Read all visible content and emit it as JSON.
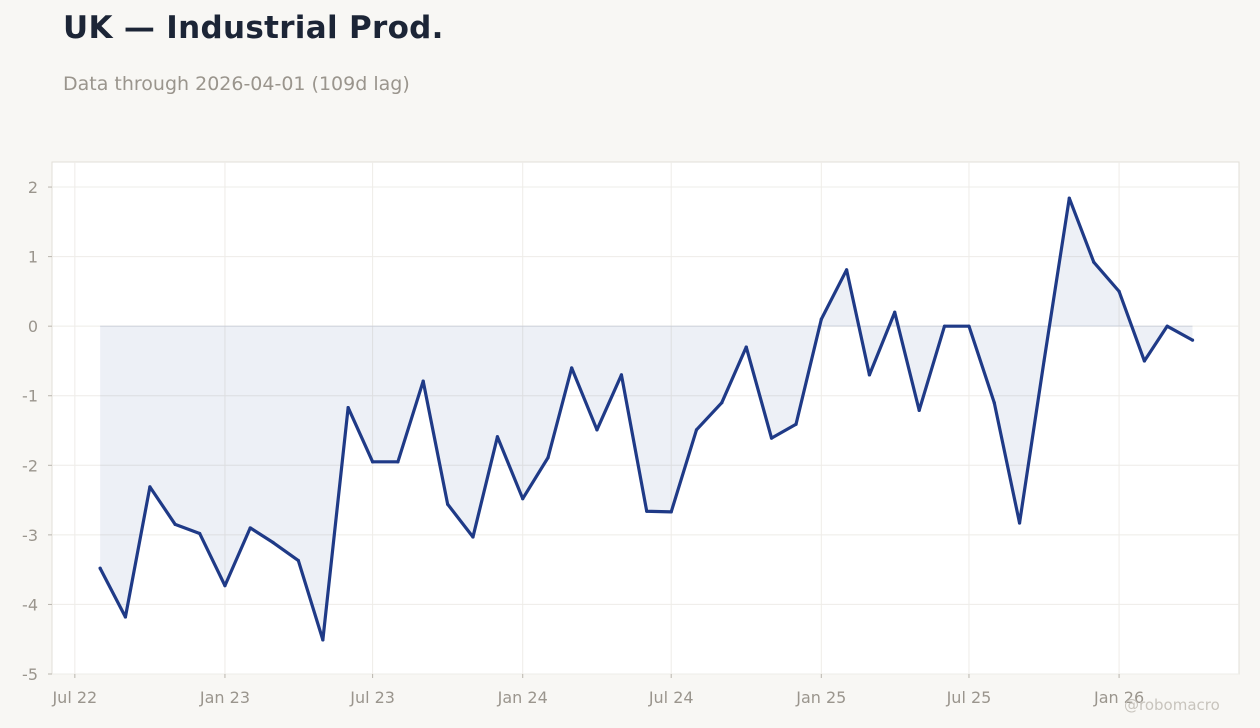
{
  "header": {
    "title": "UK — Industrial Prod.",
    "subtitle": "Data through 2026-04-01 (109d lag)"
  },
  "watermark": "@robomacro",
  "colors": {
    "line": "#1f3a87",
    "fill": "#1f3a87",
    "page_background": "#f8f7f4",
    "plot_background": "#ffffff",
    "tick_text": "#9a958d",
    "title_text": "#1c2536"
  },
  "chart_data": {
    "type": "area",
    "title": "UK — Industrial Prod.",
    "subtitle": "Data through 2026-04-01 (109d lag)",
    "xlabel": "",
    "ylabel": "",
    "x": [
      "2022-08-01",
      "2022-09-01",
      "2022-10-01",
      "2022-11-01",
      "2022-12-01",
      "2023-01-01",
      "2023-02-01",
      "2023-03-01",
      "2023-04-01",
      "2023-05-01",
      "2023-06-01",
      "2023-07-01",
      "2023-08-01",
      "2023-09-01",
      "2023-10-01",
      "2023-11-01",
      "2023-12-01",
      "2024-01-01",
      "2024-02-01",
      "2024-03-01",
      "2024-04-01",
      "2024-05-01",
      "2024-06-01",
      "2024-07-01",
      "2024-08-01",
      "2024-09-01",
      "2024-10-01",
      "2024-11-01",
      "2024-12-01",
      "2025-01-01",
      "2025-02-01",
      "2025-03-01",
      "2025-04-01",
      "2025-05-01",
      "2025-06-01",
      "2025-07-01",
      "2025-08-01",
      "2025-09-01",
      "2025-10-01",
      "2025-11-01",
      "2025-12-01",
      "2026-01-01",
      "2026-02-01",
      "2026-03-01",
      "2026-04-01"
    ],
    "series": [
      {
        "values": [
          -3.48,
          -4.18,
          -2.31,
          -2.85,
          -2.98,
          -3.73,
          -2.9,
          -3.11,
          -3.37,
          -4.51,
          -1.17,
          -1.95,
          -1.95,
          -0.79,
          -2.56,
          -3.03,
          -1.59,
          -2.48,
          -1.89,
          -0.6,
          -1.49,
          -0.7,
          -2.66,
          -2.67,
          -1.49,
          -1.1,
          -0.3,
          -1.61,
          -1.41,
          0.1,
          0.81,
          -0.7,
          0.2,
          -1.21,
          0.0,
          0.0,
          -1.1,
          -2.83,
          -0.5,
          1.84,
          0.92,
          0.5,
          -0.5,
          0.0,
          -0.2
        ]
      }
    ],
    "baseline": 0,
    "xticks": [
      {
        "date": "2022-07-01",
        "label": "Jul 22"
      },
      {
        "date": "2023-01-01",
        "label": "Jan 23"
      },
      {
        "date": "2023-07-01",
        "label": "Jul 23"
      },
      {
        "date": "2024-01-01",
        "label": "Jan 24"
      },
      {
        "date": "2024-07-01",
        "label": "Jul 24"
      },
      {
        "date": "2025-01-01",
        "label": "Jan 25"
      },
      {
        "date": "2025-07-01",
        "label": "Jul 25"
      },
      {
        "date": "2026-01-01",
        "label": "Jan 26"
      }
    ],
    "yticks": [
      2,
      1,
      0,
      -1,
      -2,
      -3,
      -4,
      -5
    ],
    "xlim": [
      "2022-06-03",
      "2026-05-28"
    ],
    "ylim": [
      -5,
      2.36
    ],
    "grid": true,
    "legend": "none"
  }
}
